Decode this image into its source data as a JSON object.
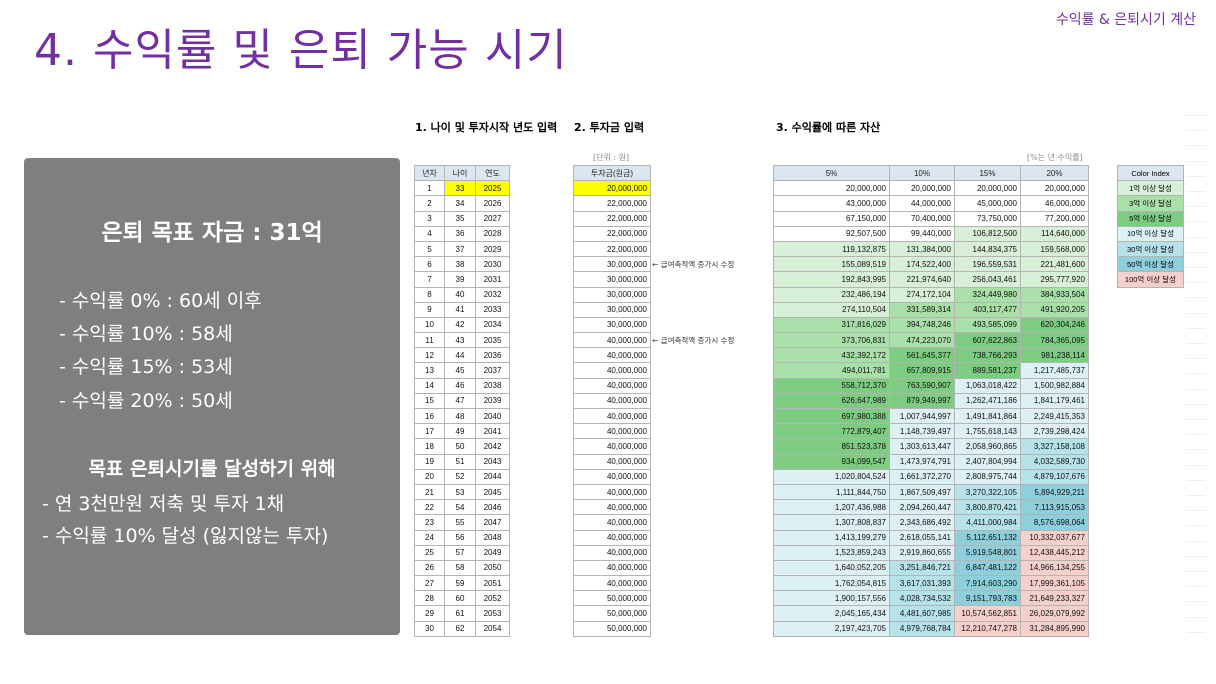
{
  "header": {
    "title": "4. 수익률 및 은퇴 가능 시기",
    "corner": "수익률 & 은퇴시기 계산"
  },
  "summary": {
    "goal": "은퇴 목표 자금 : 31억",
    "lines": [
      "- 수익률 0% : 60세 이후",
      "- 수익률 10% : 58세",
      "- 수익률 15% : 53세",
      "- 수익률 20% : 50세"
    ],
    "heading2": "목표 은퇴시기를 달성하기 위해",
    "lines2": [
      "- 연 3천만원 저축 및 투자 1채",
      "- 수익률 10% 달성 (잃지않는 투자)"
    ]
  },
  "sections": {
    "s1": "1. 나이 및 투자시작 년도 입력",
    "s2": "2. 투자금 입력",
    "s3": "3. 수익률에 따른 자산",
    "unit_won": "[단위 : 원]",
    "unit_rate": "[%는 년 수익률]"
  },
  "table1": {
    "headers": [
      "년차",
      "나이",
      "연도"
    ],
    "rows": [
      [
        "1",
        "33",
        "2025"
      ],
      [
        "2",
        "34",
        "2026"
      ],
      [
        "3",
        "35",
        "2027"
      ],
      [
        "4",
        "36",
        "2028"
      ],
      [
        "5",
        "37",
        "2029"
      ],
      [
        "6",
        "38",
        "2030"
      ],
      [
        "7",
        "39",
        "2031"
      ],
      [
        "8",
        "40",
        "2032"
      ],
      [
        "9",
        "41",
        "2033"
      ],
      [
        "10",
        "42",
        "2034"
      ],
      [
        "11",
        "43",
        "2035"
      ],
      [
        "12",
        "44",
        "2036"
      ],
      [
        "13",
        "45",
        "2037"
      ],
      [
        "14",
        "46",
        "2038"
      ],
      [
        "15",
        "47",
        "2039"
      ],
      [
        "16",
        "48",
        "2040"
      ],
      [
        "17",
        "49",
        "2041"
      ],
      [
        "18",
        "50",
        "2042"
      ],
      [
        "19",
        "51",
        "2043"
      ],
      [
        "20",
        "52",
        "2044"
      ],
      [
        "21",
        "53",
        "2045"
      ],
      [
        "22",
        "54",
        "2046"
      ],
      [
        "23",
        "55",
        "2047"
      ],
      [
        "24",
        "56",
        "2048"
      ],
      [
        "25",
        "57",
        "2049"
      ],
      [
        "26",
        "58",
        "2050"
      ],
      [
        "27",
        "59",
        "2051"
      ],
      [
        "28",
        "60",
        "2052"
      ],
      [
        "29",
        "61",
        "2053"
      ],
      [
        "30",
        "62",
        "2054"
      ]
    ]
  },
  "table2": {
    "header": "투자금(원금)",
    "values": [
      "20,000,000",
      "22,000,000",
      "22,000,000",
      "22,000,000",
      "22,000,000",
      "30,000,000",
      "30,000,000",
      "30,000,000",
      "30,000,000",
      "30,000,000",
      "40,000,000",
      "40,000,000",
      "40,000,000",
      "40,000,000",
      "40,000,000",
      "40,000,000",
      "40,000,000",
      "40,000,000",
      "40,000,000",
      "40,000,000",
      "40,000,000",
      "40,000,000",
      "40,000,000",
      "40,000,000",
      "40,000,000",
      "40,000,000",
      "40,000,000",
      "50,000,000",
      "50,000,000",
      "50,000,000"
    ],
    "note": "← 급여축적액 증가시 수정"
  },
  "table3": {
    "headers": [
      "5%",
      "10%",
      "15%",
      "20%"
    ],
    "rows": [
      [
        "20,000,000",
        "20,000,000",
        "20,000,000",
        "20,000,000"
      ],
      [
        "43,000,000",
        "44,000,000",
        "45,000,000",
        "46,000,000"
      ],
      [
        "67,150,000",
        "70,400,000",
        "73,750,000",
        "77,200,000"
      ],
      [
        "92,507,500",
        "99,440,000",
        "106,812,500",
        "114,640,000"
      ],
      [
        "119,132,875",
        "131,384,000",
        "144,834,375",
        "159,568,000"
      ],
      [
        "155,089,519",
        "174,522,400",
        "196,559,531",
        "221,481,600"
      ],
      [
        "192,843,995",
        "221,974,640",
        "256,043,461",
        "295,777,920"
      ],
      [
        "232,486,194",
        "274,172,104",
        "324,449,980",
        "384,933,504"
      ],
      [
        "274,110,504",
        "331,589,314",
        "403,117,477",
        "491,920,205"
      ],
      [
        "317,816,029",
        "394,748,246",
        "493,585,099",
        "620,304,246"
      ],
      [
        "373,706,831",
        "474,223,070",
        "607,622,863",
        "784,365,095"
      ],
      [
        "432,392,172",
        "561,645,377",
        "738,766,293",
        "981,238,114"
      ],
      [
        "494,011,781",
        "657,809,915",
        "889,581,237",
        "1,217,485,737"
      ],
      [
        "558,712,370",
        "763,590,907",
        "1,063,018,422",
        "1,500,982,884"
      ],
      [
        "626,647,989",
        "879,949,997",
        "1,262,471,186",
        "1,841,179,461"
      ],
      [
        "697,980,388",
        "1,007,944,997",
        "1,491,841,864",
        "2,249,415,353"
      ],
      [
        "772,879,407",
        "1,148,739,497",
        "1,755,618,143",
        "2,739,298,424"
      ],
      [
        "851,523,378",
        "1,303,613,447",
        "2,058,960,865",
        "3,327,158,108"
      ],
      [
        "934,099,547",
        "1,473,974,791",
        "2,407,804,994",
        "4,032,589,730"
      ],
      [
        "1,020,804,524",
        "1,661,372,270",
        "2,808,975,744",
        "4,879,107,676"
      ],
      [
        "1,111,844,750",
        "1,867,509,497",
        "3,270,322,105",
        "5,894,929,211"
      ],
      [
        "1,207,436,988",
        "2,094,260,447",
        "3,800,870,421",
        "7,113,915,053"
      ],
      [
        "1,307,808,837",
        "2,343,686,492",
        "4,411,000,984",
        "8,576,698,064"
      ],
      [
        "1,413,199,279",
        "2,618,055,141",
        "5,112,651,132",
        "10,332,037,677"
      ],
      [
        "1,523,859,243",
        "2,919,860,655",
        "5,919,548,801",
        "12,438,445,212"
      ],
      [
        "1,640,052,205",
        "3,251,846,721",
        "6,847,481,122",
        "14,966,134,255"
      ],
      [
        "1,762,054,815",
        "3,617,031,393",
        "7,914,603,290",
        "17,999,361,105"
      ],
      [
        "1,900,157,556",
        "4,028,734,532",
        "9,151,793,783",
        "21,649,233,327"
      ],
      [
        "2,045,165,434",
        "4,481,607,985",
        "10,574,562,851",
        "26,029,079,992"
      ],
      [
        "2,197,423,705",
        "4,979,768,784",
        "12,210,747,278",
        "31,284,895,990"
      ]
    ]
  },
  "color_index": {
    "header": "Color Index",
    "items": [
      {
        "label": "1억 이상 달성",
        "color": "#d7f0d7"
      },
      {
        "label": "3억 이상 달성",
        "color": "#a9dfa9"
      },
      {
        "label": "5억 이상 달성",
        "color": "#7dcc82"
      },
      {
        "label": "10억 이상 달성",
        "color": "#ddf1f4"
      },
      {
        "label": "30억 이상 달성",
        "color": "#b6e2ea"
      },
      {
        "label": "50억 이상 달성",
        "color": "#8ecfdc"
      },
      {
        "label": "100억 이상 달성",
        "color": "#f7d0cc"
      }
    ]
  }
}
